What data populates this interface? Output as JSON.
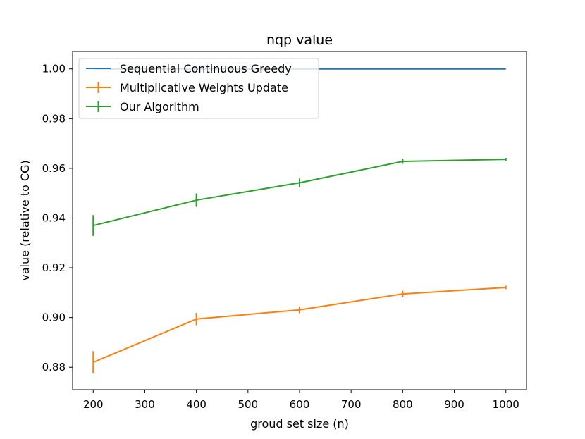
{
  "chart_data": {
    "type": "line",
    "title": "nqp value",
    "xlabel": "groud set size (n)",
    "ylabel": "value (relative to CG)",
    "xlim": [
      160,
      1040
    ],
    "ylim": [
      0.871,
      1.007
    ],
    "xticks": [
      200,
      300,
      400,
      500,
      600,
      700,
      800,
      900,
      1000
    ],
    "xtick_labels": [
      "200",
      "300",
      "400",
      "500",
      "600",
      "700",
      "800",
      "900",
      "1000"
    ],
    "yticks": [
      0.88,
      0.9,
      0.92,
      0.94,
      0.96,
      0.98,
      1.0
    ],
    "ytick_labels": [
      "0.88",
      "0.90",
      "0.92",
      "0.94",
      "0.96",
      "0.98",
      "1.00"
    ],
    "grid": false,
    "legend_position": "top-left",
    "x": [
      200,
      400,
      600,
      800,
      1000
    ],
    "series": [
      {
        "name": "Sequential Continuous Greedy",
        "color": "#1f77b4",
        "values": [
          1.0,
          1.0,
          1.0,
          1.0,
          1.0
        ],
        "errors": null
      },
      {
        "name": "Multiplicative Weights Update",
        "color": "#ff7f0e",
        "values": [
          0.882,
          0.8994,
          0.9031,
          0.9095,
          0.9121
        ],
        "errors": [
          0.0045,
          0.0025,
          0.0014,
          0.0013,
          0.0007
        ]
      },
      {
        "name": "Our Algorithm",
        "color": "#2ca02c",
        "values": [
          0.937,
          0.9472,
          0.9542,
          0.9628,
          0.9636
        ],
        "errors": [
          0.0042,
          0.0027,
          0.0017,
          0.001,
          0.0006
        ]
      }
    ]
  }
}
